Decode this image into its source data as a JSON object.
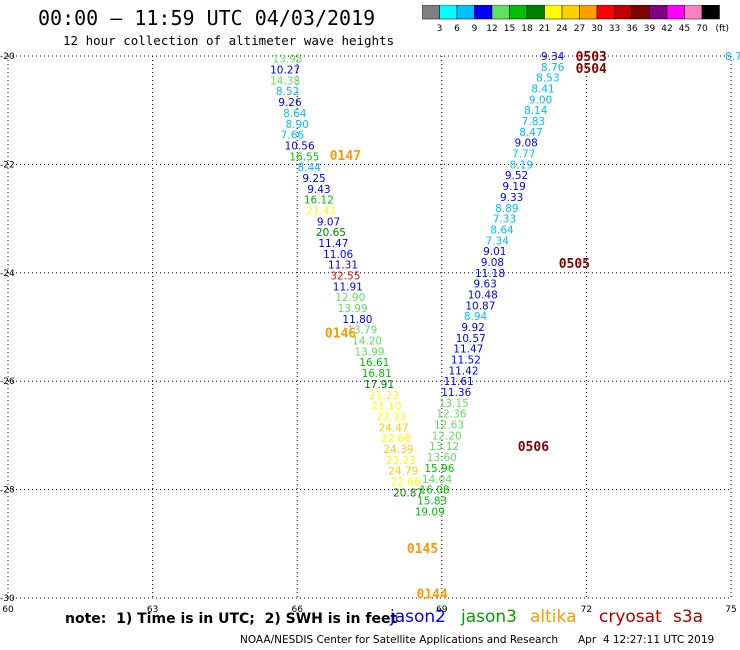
{
  "header": {
    "title": "00:00 – 11:59 UTC 04/03/2019",
    "subtitle": "12 hour collection of altimeter wave heights"
  },
  "colorbar": {
    "unit": "(ft)",
    "labels": [
      "3",
      "6",
      "9",
      "12",
      "15",
      "18",
      "21",
      "24",
      "27",
      "30",
      "33",
      "36",
      "39",
      "42",
      "45",
      "70"
    ],
    "colors": [
      "#808080",
      "#00ffff",
      "#00c0ff",
      "#0000ff",
      "#60e060",
      "#00c000",
      "#008000",
      "#ffff00",
      "#ffd000",
      "#ffa000",
      "#ff0000",
      "#c00000",
      "#800000",
      "#800080",
      "#ff00ff",
      "#ff80c0",
      "#000000"
    ]
  },
  "axes": {
    "x_ticks": [
      60,
      63,
      66,
      69,
      72,
      75
    ],
    "y_ticks": [
      -20,
      -22,
      -24,
      -26,
      -28,
      -30
    ]
  },
  "map_data": {
    "xlim": [
      60,
      75
    ],
    "ylim": [
      -30,
      -20
    ],
    "track_labels": [
      {
        "text": "0503",
        "lon": 72.1,
        "lat": -20.0,
        "color": "#800000"
      },
      {
        "text": "0504",
        "lon": 72.1,
        "lat": -20.22,
        "color": "#800000"
      },
      {
        "text": "0147",
        "lon": 67.0,
        "lat": -21.83,
        "color": "#ff9900"
      },
      {
        "text": "0505",
        "lon": 71.75,
        "lat": -23.82,
        "color": "#800000"
      },
      {
        "text": "0146",
        "lon": 66.9,
        "lat": -25.1,
        "color": "#ff9900"
      },
      {
        "text": "0506",
        "lon": 70.9,
        "lat": -27.2,
        "color": "#800000"
      },
      {
        "text": "0145",
        "lon": 68.6,
        "lat": -29.08,
        "color": "#ff9900"
      },
      {
        "text": "0144",
        "lon": 68.8,
        "lat": -29.92,
        "color": "#ff9900"
      }
    ],
    "points": [
      {
        "v": "13.95",
        "lon": 65.8,
        "lat": -20.05,
        "color": "#60e060"
      },
      {
        "v": "10.27",
        "lon": 65.75,
        "lat": -20.25,
        "color": "#0000ff"
      },
      {
        "v": "14.38",
        "lon": 65.75,
        "lat": -20.45,
        "color": "#60e060"
      },
      {
        "v": "8.52",
        "lon": 65.8,
        "lat": -20.65,
        "color": "#00c0ff"
      },
      {
        "v": "9.26",
        "lon": 65.85,
        "lat": -20.85,
        "color": "#0000ff"
      },
      {
        "v": "8.64",
        "lon": 65.95,
        "lat": -21.05,
        "color": "#00c0ff"
      },
      {
        "v": "8.90",
        "lon": 66.0,
        "lat": -21.25,
        "color": "#00c0ff"
      },
      {
        "v": "7.66",
        "lon": 65.9,
        "lat": -21.45,
        "color": "#00c0ff"
      },
      {
        "v": "10.56",
        "lon": 66.05,
        "lat": -21.65,
        "color": "#0000ff"
      },
      {
        "v": "16.55",
        "lon": 66.15,
        "lat": -21.85,
        "color": "#00c000"
      },
      {
        "v": "8.44",
        "lon": 66.25,
        "lat": -22.05,
        "color": "#00c0ff"
      },
      {
        "v": "9.25",
        "lon": 66.35,
        "lat": -22.25,
        "color": "#0000ff"
      },
      {
        "v": "9.43",
        "lon": 66.45,
        "lat": -22.45,
        "color": "#0000ff"
      },
      {
        "v": "16.12",
        "lon": 66.45,
        "lat": -22.65,
        "color": "#00c000"
      },
      {
        "v": "21.41",
        "lon": 66.5,
        "lat": -22.85,
        "color": "#ffff00"
      },
      {
        "v": "9.07",
        "lon": 66.65,
        "lat": -23.05,
        "color": "#0000ff"
      },
      {
        "v": "20.65",
        "lon": 66.7,
        "lat": -23.25,
        "color": "#008000"
      },
      {
        "v": "11.47",
        "lon": 66.75,
        "lat": -23.45,
        "color": "#0000ff"
      },
      {
        "v": "11.06",
        "lon": 66.85,
        "lat": -23.65,
        "color": "#0000ff"
      },
      {
        "v": "11.31",
        "lon": 66.95,
        "lat": -23.85,
        "color": "#0000ff"
      },
      {
        "v": "32.55",
        "lon": 67.0,
        "lat": -24.05,
        "color": "#ff0000"
      },
      {
        "v": "11.91",
        "lon": 67.05,
        "lat": -24.25,
        "color": "#0000ff"
      },
      {
        "v": "12.90",
        "lon": 67.1,
        "lat": -24.45,
        "color": "#60e060"
      },
      {
        "v": "13.99",
        "lon": 67.15,
        "lat": -24.65,
        "color": "#60e060"
      },
      {
        "v": "11.80",
        "lon": 67.25,
        "lat": -24.85,
        "color": "#0000ff"
      },
      {
        "v": "13.79",
        "lon": 67.35,
        "lat": -25.05,
        "color": "#60e060"
      },
      {
        "v": "14.20",
        "lon": 67.45,
        "lat": -25.25,
        "color": "#60e060"
      },
      {
        "v": "13.99",
        "lon": 67.5,
        "lat": -25.45,
        "color": "#60e060"
      },
      {
        "v": "16.61",
        "lon": 67.6,
        "lat": -25.65,
        "color": "#00c000"
      },
      {
        "v": "16.81",
        "lon": 67.65,
        "lat": -25.85,
        "color": "#00c000"
      },
      {
        "v": "17.91",
        "lon": 67.7,
        "lat": -26.05,
        "color": "#008000"
      },
      {
        "v": "21.23",
        "lon": 67.8,
        "lat": -26.25,
        "color": "#ffff00"
      },
      {
        "v": "21.10",
        "lon": 67.85,
        "lat": -26.45,
        "color": "#ffff00"
      },
      {
        "v": "23.33",
        "lon": 67.95,
        "lat": -26.65,
        "color": "#ffff00"
      },
      {
        "v": "24.47",
        "lon": 68.0,
        "lat": -26.85,
        "color": "#ffd000"
      },
      {
        "v": "22.66",
        "lon": 68.05,
        "lat": -27.05,
        "color": "#ffff00"
      },
      {
        "v": "24.39",
        "lon": 68.1,
        "lat": -27.25,
        "color": "#ffd000"
      },
      {
        "v": "23.23",
        "lon": 68.15,
        "lat": -27.45,
        "color": "#ffff00"
      },
      {
        "v": "24.79",
        "lon": 68.2,
        "lat": -27.65,
        "color": "#ffd000"
      },
      {
        "v": "22.66",
        "lon": 68.25,
        "lat": -27.85,
        "color": "#ffff00"
      },
      {
        "v": "20.87",
        "lon": 68.3,
        "lat": -28.05,
        "color": "#008000"
      },
      {
        "v": "9.34",
        "lon": 71.3,
        "lat": -20.0,
        "color": "#0000ff"
      },
      {
        "v": "8.76",
        "lon": 71.3,
        "lat": -20.2,
        "color": "#00c0ff"
      },
      {
        "v": "8.53",
        "lon": 71.2,
        "lat": -20.4,
        "color": "#00c0ff"
      },
      {
        "v": "8.41",
        "lon": 71.1,
        "lat": -20.6,
        "color": "#00c0ff"
      },
      {
        "v": "9.00",
        "lon": 71.05,
        "lat": -20.8,
        "color": "#00c0ff"
      },
      {
        "v": "8.14",
        "lon": 70.95,
        "lat": -21.0,
        "color": "#00c0ff"
      },
      {
        "v": "7.83",
        "lon": 70.9,
        "lat": -21.2,
        "color": "#00c0ff"
      },
      {
        "v": "8.47",
        "lon": 70.85,
        "lat": -21.4,
        "color": "#00c0ff"
      },
      {
        "v": "9.08",
        "lon": 70.75,
        "lat": -21.6,
        "color": "#0000ff"
      },
      {
        "v": "7.77",
        "lon": 70.7,
        "lat": -21.8,
        "color": "#00c0ff"
      },
      {
        "v": "8.19",
        "lon": 70.65,
        "lat": -22.0,
        "color": "#00c0ff"
      },
      {
        "v": "9.52",
        "lon": 70.55,
        "lat": -22.2,
        "color": "#0000ff"
      },
      {
        "v": "9.19",
        "lon": 70.5,
        "lat": -22.4,
        "color": "#0000ff"
      },
      {
        "v": "9.33",
        "lon": 70.45,
        "lat": -22.6,
        "color": "#0000ff"
      },
      {
        "v": "8.89",
        "lon": 70.35,
        "lat": -22.8,
        "color": "#00c0ff"
      },
      {
        "v": "7.33",
        "lon": 70.3,
        "lat": -23.0,
        "color": "#00c0ff"
      },
      {
        "v": "8.64",
        "lon": 70.25,
        "lat": -23.2,
        "color": "#00c0ff"
      },
      {
        "v": "7.34",
        "lon": 70.15,
        "lat": -23.4,
        "color": "#00c0ff"
      },
      {
        "v": "9.01",
        "lon": 70.1,
        "lat": -23.6,
        "color": "#0000ff"
      },
      {
        "v": "9.08",
        "lon": 70.05,
        "lat": -23.8,
        "color": "#0000ff"
      },
      {
        "v": "11.18",
        "lon": 70.0,
        "lat": -24.0,
        "color": "#0000ff"
      },
      {
        "v": "9.63",
        "lon": 69.9,
        "lat": -24.2,
        "color": "#0000ff"
      },
      {
        "v": "10.48",
        "lon": 69.85,
        "lat": -24.4,
        "color": "#0000ff"
      },
      {
        "v": "10.87",
        "lon": 69.8,
        "lat": -24.6,
        "color": "#0000ff"
      },
      {
        "v": "8.94",
        "lon": 69.7,
        "lat": -24.8,
        "color": "#00c0ff"
      },
      {
        "v": "9.92",
        "lon": 69.65,
        "lat": -25.0,
        "color": "#0000ff"
      },
      {
        "v": "10.57",
        "lon": 69.6,
        "lat": -25.2,
        "color": "#0000ff"
      },
      {
        "v": "11.47",
        "lon": 69.55,
        "lat": -25.4,
        "color": "#0000ff"
      },
      {
        "v": "11.52",
        "lon": 69.5,
        "lat": -25.6,
        "color": "#0000ff"
      },
      {
        "v": "11.42",
        "lon": 69.45,
        "lat": -25.8,
        "color": "#0000ff"
      },
      {
        "v": "11.61",
        "lon": 69.35,
        "lat": -26.0,
        "color": "#0000ff"
      },
      {
        "v": "11.36",
        "lon": 69.3,
        "lat": -26.2,
        "color": "#0000ff"
      },
      {
        "v": "13.15",
        "lon": 69.25,
        "lat": -26.4,
        "color": "#60e060"
      },
      {
        "v": "12.36",
        "lon": 69.2,
        "lat": -26.6,
        "color": "#60e060"
      },
      {
        "v": "12.63",
        "lon": 69.15,
        "lat": -26.8,
        "color": "#60e060"
      },
      {
        "v": "12.20",
        "lon": 69.1,
        "lat": -27.0,
        "color": "#60e060"
      },
      {
        "v": "13.12",
        "lon": 69.05,
        "lat": -27.2,
        "color": "#60e060"
      },
      {
        "v": "13.60",
        "lon": 69.0,
        "lat": -27.4,
        "color": "#60e060"
      },
      {
        "v": "15.96",
        "lon": 68.95,
        "lat": -27.6,
        "color": "#00c000"
      },
      {
        "v": "14.04",
        "lon": 68.9,
        "lat": -27.8,
        "color": "#60e060"
      },
      {
        "v": "16.08",
        "lon": 68.85,
        "lat": -28.0,
        "color": "#00c000"
      },
      {
        "v": "15.83",
        "lon": 68.8,
        "lat": -28.2,
        "color": "#00c000"
      },
      {
        "v": "19.09",
        "lon": 68.75,
        "lat": -28.4,
        "color": "#00c000"
      },
      {
        "v": "8.7",
        "lon": 75.05,
        "lat": -20.0,
        "color": "#00c0ff"
      }
    ]
  },
  "note": "note:  1) Time is in UTC;  2) SWH is in feet",
  "satellites": {
    "jason2": "jason2",
    "jason3": "jason3",
    "altika": "altika",
    "cryosat": "cryosat",
    "s3a": "s3a"
  },
  "credit": "NOAA/NESDIS Center for Satellite Applications and Research",
  "credit_time": "Apr  4 12:27:11 UTC 2019"
}
